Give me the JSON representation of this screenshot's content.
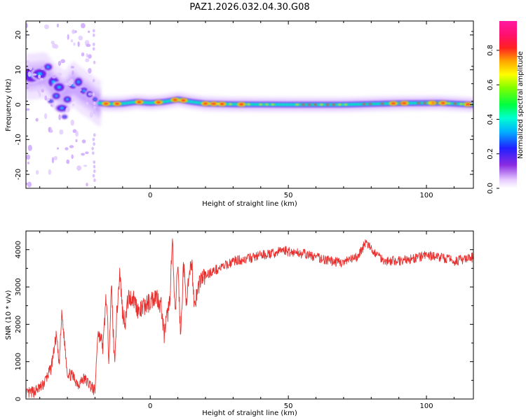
{
  "figure": {
    "title": "PAZ1.2026.032.04.30.G08"
  },
  "chart_data": [
    {
      "type": "heatmap",
      "title": "PAZ1.2026.032.04.30.G08",
      "xlabel": "Height of straight line (km)",
      "ylabel": "Frequency (Hz)",
      "xlim": [
        -45,
        117
      ],
      "ylim": [
        -24,
        24
      ],
      "xticks": [
        0,
        50,
        100
      ],
      "yticks": [
        -20,
        -10,
        0,
        10,
        20
      ],
      "grid": false,
      "colorbar": {
        "label": "Normalized spectral amplitude",
        "range": [
          0,
          0.97
        ],
        "ticks": [
          0.0,
          0.2,
          0.4,
          0.6,
          0.8
        ],
        "colormap": "rainbow-purple-to-pink"
      },
      "ridge": {
        "x": [
          -43,
          -38,
          -35,
          -31,
          -28,
          -25,
          -22,
          -19,
          -15,
          -10,
          -5,
          0,
          5,
          10,
          15,
          20,
          30,
          50,
          70,
          90,
          105,
          117
        ],
        "freq": [
          8,
          8.5,
          5.5,
          3,
          6,
          4,
          2.5,
          0.5,
          0.2,
          0.3,
          0.8,
          0.5,
          0.8,
          1.5,
          0.8,
          0.3,
          0.1,
          0.0,
          0.0,
          0.4,
          0.5,
          0.0
        ]
      }
    },
    {
      "type": "line",
      "xlabel": "Height of straight line (km)",
      "ylabel": "SNR (10 * v/v)",
      "xlim": [
        -45,
        117
      ],
      "ylim": [
        0,
        4500
      ],
      "xticks": [
        0,
        50,
        100
      ],
      "yticks": [
        0,
        1000,
        2000,
        3000,
        4000
      ],
      "grid": false,
      "series": [
        {
          "color": "#e8302e",
          "x": [
            -45,
            -42,
            -39,
            -36,
            -34,
            -33,
            -32,
            -30,
            -28,
            -26,
            -24,
            -22,
            -20,
            -19,
            -17,
            -16,
            -15,
            -14,
            -13,
            -12,
            -11,
            -10,
            -9,
            -8,
            -6,
            -4,
            -2,
            0,
            2,
            4,
            5,
            7,
            8,
            9,
            10,
            11,
            12,
            13,
            14,
            15,
            16,
            18,
            20,
            22,
            25,
            28,
            30,
            35,
            40,
            45,
            48,
            50,
            55,
            60,
            65,
            70,
            75,
            78,
            80,
            85,
            90,
            95,
            100,
            105,
            110,
            115,
            117
          ],
          "y": [
            120,
            200,
            350,
            800,
            1700,
            900,
            2300,
            700,
            600,
            400,
            550,
            400,
            200,
            1800,
            1400,
            2800,
            1200,
            3000,
            1000,
            2400,
            3400,
            2300,
            2100,
            2700,
            2700,
            2300,
            2500,
            2600,
            2800,
            2500,
            1700,
            2600,
            4200,
            2200,
            3700,
            1600,
            3600,
            2700,
            3100,
            3700,
            2500,
            3200,
            3300,
            3400,
            3500,
            3600,
            3700,
            3750,
            3850,
            3900,
            4000,
            3950,
            3900,
            3800,
            3700,
            3650,
            3800,
            4200,
            4000,
            3700,
            3700,
            3750,
            3850,
            3800,
            3700,
            3750,
            3800
          ]
        }
      ]
    }
  ]
}
